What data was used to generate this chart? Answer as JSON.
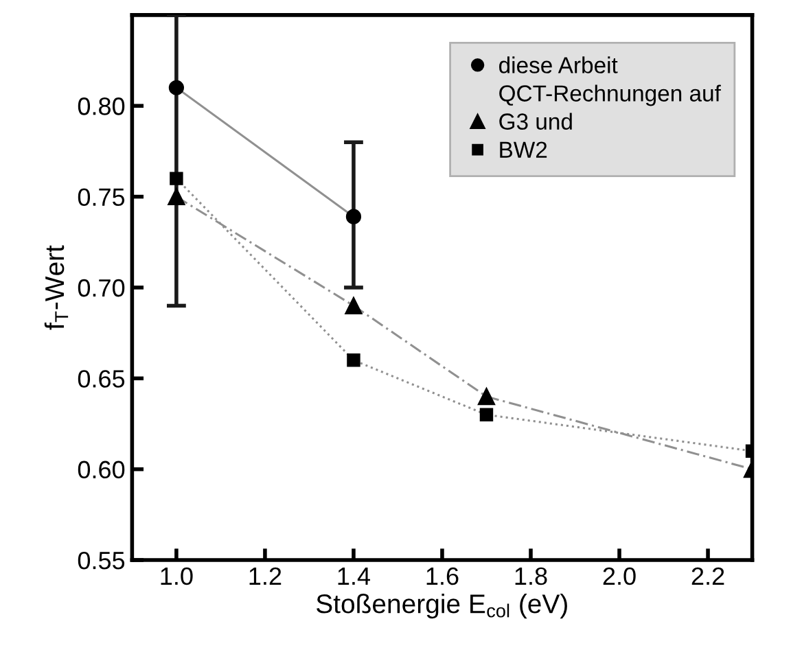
{
  "chart_data": {
    "type": "line",
    "xlabel": "Stoßenergie E$_{col}$ (eV)",
    "ylabel": "f$_{T}$-Wert",
    "annotations": [
      "QCT-Rechnungen auf"
    ],
    "series": [
      {
        "name": "diese Arbeit",
        "color": "#000000",
        "marker": "circle",
        "line_style": "solid",
        "x": [
          1.0,
          1.4
        ],
        "values": [
          0.81,
          0.739
        ],
        "errors": [
          [
            0.69,
            0.85
          ],
          [
            0.7,
            0.78
          ]
        ]
      },
      {
        "name": "G3 und",
        "color": "#000000",
        "marker": "triangle",
        "line_style": "dashed",
        "x": [
          1.0,
          1.4,
          1.7,
          2.3
        ],
        "values": [
          0.75,
          0.69,
          0.64,
          0.6
        ]
      },
      {
        "name": "BW2",
        "color": "#000000",
        "marker": "square",
        "line_style": "dotted",
        "x": [
          1.0,
          1.4,
          1.7,
          2.3
        ],
        "values": [
          0.76,
          0.66,
          0.63,
          0.61
        ]
      }
    ],
    "xlim": [
      0.9,
      2.3
    ],
    "ylim": [
      0.55,
      0.85
    ],
    "xticks": [
      {
        "value": 1.0,
        "label": "1.0"
      },
      1.2,
      1.4,
      1.6,
      1.8,
      {
        "value": 2.0,
        "label": "2.0"
      },
      2.2
    ],
    "yticks": [
      0.55,
      {
        "value": 0.6,
        "label": "0.60"
      },
      0.65,
      {
        "value": 0.7,
        "label": "0.70"
      },
      0.75,
      {
        "value": 0.8,
        "label": "0.80"
      }
    ],
    "grid": false,
    "legend": "top right"
  }
}
